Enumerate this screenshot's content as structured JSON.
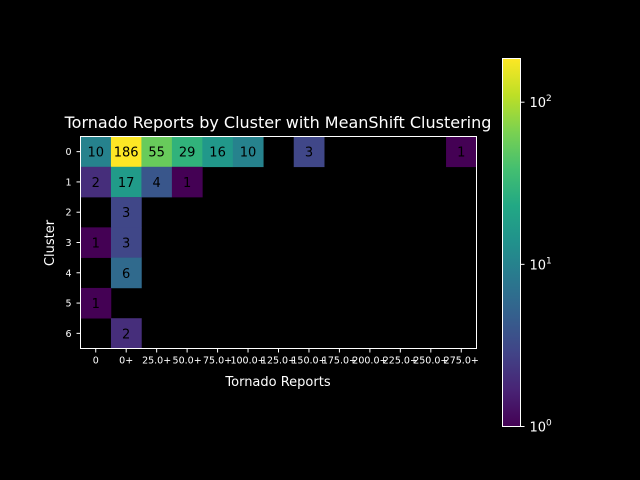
{
  "chart_data": {
    "type": "heatmap",
    "title": "Tornado Reports by Cluster with MeanShift Clustering",
    "xlabel": "Tornado Reports",
    "ylabel": "Cluster",
    "x_categories": [
      "0",
      "0+",
      "25.0+",
      "50.0+",
      "75.0+",
      "100.0+",
      "125.0+",
      "150.0+",
      "175.0+",
      "200.0+",
      "225.0+",
      "250.0+",
      "275.0+"
    ],
    "y_categories": [
      "0",
      "1",
      "2",
      "3",
      "4",
      "5",
      "6"
    ],
    "values": [
      [
        10,
        186,
        55,
        29,
        16,
        10,
        null,
        3,
        null,
        null,
        null,
        null,
        1
      ],
      [
        2,
        17,
        4,
        1,
        null,
        null,
        null,
        null,
        null,
        null,
        null,
        null,
        null
      ],
      [
        null,
        3,
        null,
        null,
        null,
        null,
        null,
        null,
        null,
        null,
        null,
        null,
        null
      ],
      [
        1,
        3,
        null,
        null,
        null,
        null,
        null,
        null,
        null,
        null,
        null,
        null,
        null
      ],
      [
        null,
        6,
        null,
        null,
        null,
        null,
        null,
        null,
        null,
        null,
        null,
        null,
        null
      ],
      [
        1,
        null,
        null,
        null,
        null,
        null,
        null,
        null,
        null,
        null,
        null,
        null,
        null
      ],
      [
        null,
        2,
        null,
        null,
        null,
        null,
        null,
        null,
        null,
        null,
        null,
        null,
        null
      ]
    ],
    "colorbar": {
      "scale": "log",
      "range": [
        1,
        186
      ],
      "colormap": "viridis",
      "ticks": [
        {
          "value": 1,
          "base": "10",
          "exp": "0"
        },
        {
          "value": 10,
          "base": "10",
          "exp": "1"
        },
        {
          "value": 100,
          "base": "10",
          "exp": "2"
        }
      ]
    },
    "background": "#000000",
    "text_color": "#ffffff"
  }
}
